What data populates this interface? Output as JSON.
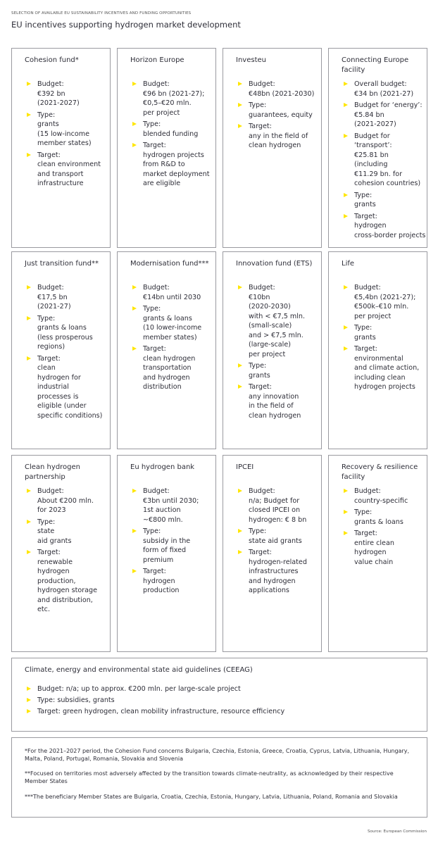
{
  "header": {
    "kicker": "SELECTION OF AVAILABLE EU SUSTAINABILITY INCENTIVES AND FUNDING OPPORTUNITIES",
    "title": "EU incentives supporting hydrogen market development"
  },
  "cards": [
    {
      "title_lines": [
        "Cohesion fund*"
      ],
      "items": [
        {
          "lines": [
            "Budget:",
            "€392 bn",
            "(2021-2027)"
          ]
        },
        {
          "lines": [
            "Type:",
            "grants",
            "(15 low-income",
            "member states)"
          ]
        },
        {
          "lines": [
            "Target:",
            "clean environment",
            "and transport",
            "infrastructure"
          ]
        }
      ]
    },
    {
      "title_lines": [
        "Horizon Europe"
      ],
      "items": [
        {
          "lines": [
            "Budget:",
            "€96 bn (2021-27);",
            "€0,5–€20 mln.",
            "per project"
          ]
        },
        {
          "lines": [
            "Type:",
            "blended funding"
          ]
        },
        {
          "lines": [
            "Target:",
            "hydrogen projects",
            "from R&D to",
            "market deployment",
            "are eligible"
          ]
        }
      ]
    },
    {
      "title_lines": [
        "Investeu"
      ],
      "items": [
        {
          "lines": [
            "Budget:",
            "€48bn (2021-2030)"
          ]
        },
        {
          "lines": [
            "Type:",
            "guarantees, equity"
          ]
        },
        {
          "lines": [
            "Target:",
            "any in the field of",
            "clean hydrogen"
          ]
        }
      ]
    },
    {
      "title_lines": [
        "Connecting Europe",
        "facility"
      ],
      "items": [
        {
          "lines": [
            "Overall budget:",
            "€34 bn (2021-27)"
          ]
        },
        {
          "lines": [
            "Budget for ‘energy’:",
            "€5.84 bn",
            "(2021-2027)"
          ]
        },
        {
          "lines": [
            "Budget for",
            "‘transport’:",
            "€25.81 bn",
            "(including",
            "€11.29 bn. for",
            "cohesion countries)"
          ]
        },
        {
          "lines": [
            "Type:",
            "grants"
          ]
        },
        {
          "lines": [
            "Target:",
            "hydrogen",
            "cross-border projects"
          ]
        }
      ]
    },
    {
      "title_lines": [
        "Just transition fund**"
      ],
      "items": [
        {
          "lines": [
            "Budget:",
            "€17,5 bn",
            "(2021-27)"
          ]
        },
        {
          "lines": [
            "Type:",
            "grants & loans",
            "(less prosperous",
            "regions)"
          ]
        },
        {
          "lines": [
            "Target:",
            "clean",
            "hydrogen for",
            "industrial",
            "processes is",
            "eligible (under",
            "specific conditions)"
          ]
        }
      ]
    },
    {
      "title_lines": [
        "Modernisation fund***"
      ],
      "items": [
        {
          "lines": [
            "Budget:",
            "€14bn until 2030"
          ]
        },
        {
          "lines": [
            "Type:",
            "grants & loans",
            "(10 lower-income",
            "member states)"
          ]
        },
        {
          "lines": [
            "Target:",
            "clean hydrogen",
            "transportation",
            "and hydrogen",
            "distribution"
          ]
        }
      ]
    },
    {
      "title_lines": [
        "Innovation fund (ETS)"
      ],
      "items": [
        {
          "lines": [
            "Budget:",
            "€10bn",
            "(2020-2030)",
            "with < €7,5 mln.",
            "(small-scale)",
            "and > €7,5 mln.",
            "(large-scale)",
            "per project"
          ]
        },
        {
          "lines": [
            "Type:",
            "grants"
          ]
        },
        {
          "lines": [
            "Target:",
            "any innovation",
            "in the field of",
            "clean hydrogen"
          ]
        }
      ]
    },
    {
      "title_lines": [
        "Life"
      ],
      "items": [
        {
          "lines": [
            "Budget:",
            "€5,4bn (2021-27);",
            "€500k–€10 mln.",
            "per project"
          ]
        },
        {
          "lines": [
            "Type:",
            "grants"
          ]
        },
        {
          "lines": [
            "Target:",
            "environmental",
            "and climate action,",
            "including clean",
            "hydrogen projects"
          ]
        }
      ]
    },
    {
      "title_lines": [
        "Clean hydrogen",
        "partnership"
      ],
      "items": [
        {
          "lines": [
            "Budget:",
            "About €200 mln.",
            "for 2023"
          ]
        },
        {
          "lines": [
            "Type:",
            "state",
            "aid grants"
          ]
        },
        {
          "lines": [
            "Target:",
            "renewable",
            "hydrogen",
            "production,",
            "hydrogen storage",
            "and distribution,",
            "etc."
          ]
        }
      ]
    },
    {
      "title_lines": [
        "Eu hydrogen bank"
      ],
      "items": [
        {
          "lines": [
            "Budget:",
            "€3bn until 2030;",
            "1st auction",
            "~€800 mln."
          ]
        },
        {
          "lines": [
            "Type:",
            "subsidy in the",
            "form of fixed",
            "premium"
          ]
        },
        {
          "lines": [
            "Target:",
            "hydrogen",
            "production"
          ]
        }
      ]
    },
    {
      "title_lines": [
        "IPCEI"
      ],
      "items": [
        {
          "lines": [
            "Budget:",
            "n/a; Budget for",
            "closed IPCEI on",
            "hydrogen: € 8 bn"
          ]
        },
        {
          "lines": [
            "Type:",
            "state aid grants"
          ]
        },
        {
          "lines": [
            "Target:",
            "hydrogen-related",
            "infrastructures",
            "and hydrogen",
            "applications"
          ]
        }
      ]
    },
    {
      "title_lines": [
        "Recovery & resilience",
        "facility"
      ],
      "items": [
        {
          "lines": [
            "Budget:",
            "country-specific"
          ]
        },
        {
          "lines": [
            "Type:",
            "grants & loans"
          ]
        },
        {
          "lines": [
            "Target:",
            "entire clean",
            "hydrogen",
            "value chain"
          ]
        }
      ]
    }
  ],
  "wide_card": {
    "title": "Climate, energy and environmental state aid guidelines (CEEAG)",
    "items": [
      {
        "lines": [
          "Budget: n/a; up to approx. €200 mln. per large-scale project"
        ]
      },
      {
        "lines": [
          "Type: subsidies, grants"
        ]
      },
      {
        "lines": [
          "Target: green hydrogen, clean mobility infrastructure, resource efficiency"
        ]
      }
    ]
  },
  "footnotes": [
    "*For the 2021–2027 period, the Cohesion Fund concerns Bulgaria, Czechia, Estonia, Greece, Croatia, Cyprus, Latvia, Lithuania, Hungary, Malta, Poland, Portugal, Romania, Slovakia and Slovenia",
    "**Focused on territories most adversely affected by the transition towards climate-neutrality, as acknowledged by their respective Member States",
    "***The beneficiary Member States are Bulgaria, Croatia, Czechia, Estonia, Hungary, Latvia, Lithuania, Poland, Romania and Slovakia"
  ],
  "source": "Source: European Commission"
}
